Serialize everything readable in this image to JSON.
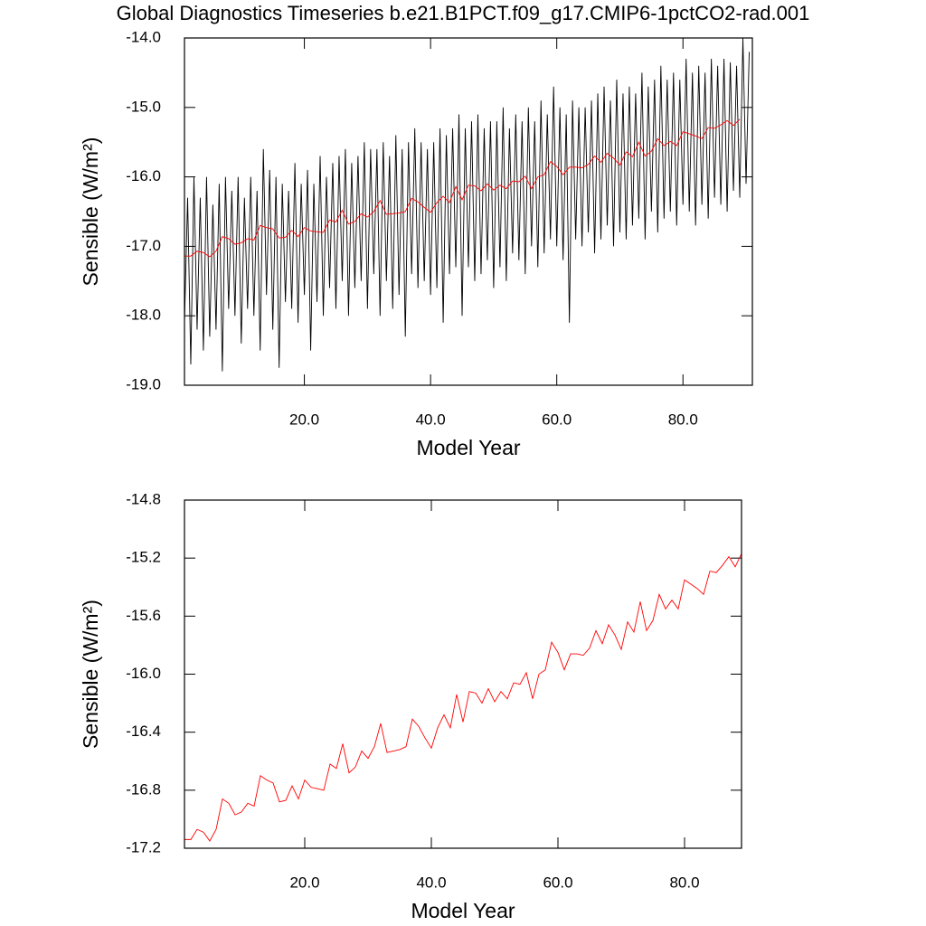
{
  "chart_data": [
    {
      "type": "line",
      "title": "Global Diagnostics Timeseries b.e21.B1PCT.f09_g17.CMIP6-1pctCO2-rad.001",
      "xlabel": "Model Year",
      "ylabel": "Sensible (W/m²)",
      "xlim": [
        1,
        91
      ],
      "ylim": [
        -19,
        -14
      ],
      "xticks": [
        {
          "value": 20,
          "label": "20.0"
        },
        {
          "value": 40,
          "label": "40.0"
        },
        {
          "value": 60,
          "label": "60.0"
        },
        {
          "value": 80,
          "label": "80.0"
        }
      ],
      "yticks": [
        {
          "value": -19,
          "label": "-19.0"
        },
        {
          "value": -18,
          "label": "-18.0"
        },
        {
          "value": -17,
          "label": "-17.0"
        },
        {
          "value": -16,
          "label": "-16.0"
        },
        {
          "value": -15,
          "label": "-15.0"
        },
        {
          "value": -14,
          "label": "-14.0"
        }
      ],
      "series": [
        {
          "color": "#000000",
          "x": [
            1,
            1.5,
            2,
            2.5,
            3,
            3.5,
            4,
            4.5,
            5,
            5.5,
            6,
            6.5,
            7,
            7.5,
            8,
            8.5,
            9,
            9.5,
            10,
            10.5,
            11,
            11.5,
            12,
            12.5,
            13,
            13.5,
            14,
            14.5,
            15,
            15.5,
            16,
            16.5,
            17,
            17.5,
            18,
            18.5,
            19,
            19.5,
            20,
            20.5,
            21,
            21.5,
            22,
            22.5,
            23,
            23.5,
            24,
            24.5,
            25,
            25.5,
            26,
            26.5,
            27,
            27.5,
            28,
            28.5,
            29,
            29.5,
            30,
            30.5,
            31,
            31.5,
            32,
            32.5,
            33,
            33.5,
            34,
            34.5,
            35,
            35.5,
            36,
            36.5,
            37,
            37.5,
            38,
            38.5,
            39,
            39.5,
            40,
            40.5,
            41,
            41.5,
            42,
            42.5,
            43,
            43.5,
            44,
            44.5,
            45,
            45.5,
            46,
            46.5,
            47,
            47.5,
            48,
            48.5,
            49,
            49.5,
            50,
            50.5,
            51,
            51.5,
            52,
            52.5,
            53,
            53.5,
            54,
            54.5,
            55,
            55.5,
            56,
            56.5,
            57,
            57.5,
            58,
            58.5,
            59,
            59.5,
            60,
            60.5,
            61,
            61.5,
            62,
            62.5,
            63,
            63.5,
            64,
            64.5,
            65,
            65.5,
            66,
            66.5,
            67,
            67.5,
            68,
            68.5,
            69,
            69.5,
            70,
            70.5,
            71,
            71.5,
            72,
            72.5,
            73,
            73.5,
            74,
            74.5,
            75,
            75.5,
            76,
            76.5,
            77,
            77.5,
            78,
            78.5,
            79,
            79.5,
            80,
            80.5,
            81,
            81.5,
            82,
            82.5,
            83,
            83.5,
            84,
            84.5,
            85,
            85.5,
            86,
            86.5,
            87,
            87.5,
            88,
            88.5,
            89,
            89.5,
            90,
            90.5
          ],
          "values": [
            -18.1,
            -16.3,
            -18.7,
            -16.0,
            -18.2,
            -16.3,
            -18.5,
            -16.0,
            -18.3,
            -16.4,
            -18.2,
            -16.1,
            -18.8,
            -16.0,
            -17.9,
            -16.2,
            -18.0,
            -16.0,
            -18.4,
            -16.3,
            -17.9,
            -16.0,
            -18.0,
            -16.2,
            -18.5,
            -15.6,
            -17.7,
            -15.9,
            -18.2,
            -16.0,
            -18.75,
            -16.1,
            -17.8,
            -16.2,
            -17.9,
            -15.8,
            -18.1,
            -16.1,
            -17.7,
            -15.9,
            -18.5,
            -16.1,
            -17.8,
            -15.7,
            -18.0,
            -16.0,
            -17.6,
            -15.8,
            -17.9,
            -15.7,
            -17.5,
            -15.6,
            -18.0,
            -15.8,
            -17.6,
            -15.7,
            -17.5,
            -15.5,
            -17.9,
            -15.6,
            -17.4,
            -15.6,
            -18.0,
            -15.5,
            -17.5,
            -15.7,
            -17.9,
            -15.4,
            -17.7,
            -15.6,
            -18.3,
            -15.5,
            -17.4,
            -15.3,
            -17.6,
            -15.5,
            -17.5,
            -15.6,
            -17.7,
            -15.5,
            -17.6,
            -15.3,
            -18.1,
            -15.4,
            -17.4,
            -15.3,
            -17.3,
            -15.1,
            -18.0,
            -15.3,
            -17.3,
            -15.2,
            -17.5,
            -15.1,
            -17.4,
            -15.3,
            -17.2,
            -15.2,
            -17.6,
            -15.2,
            -17.3,
            -15.0,
            -17.5,
            -15.3,
            -17.1,
            -15.1,
            -17.2,
            -15.2,
            -17.4,
            -15.0,
            -17.0,
            -15.2,
            -17.3,
            -14.9,
            -17.1,
            -15.1,
            -16.9,
            -14.7,
            -17.0,
            -15.0,
            -17.2,
            -15.1,
            -18.1,
            -14.9,
            -16.9,
            -15.0,
            -17.0,
            -15.0,
            -16.8,
            -14.9,
            -17.1,
            -14.8,
            -16.9,
            -14.7,
            -16.7,
            -14.9,
            -17.0,
            -14.6,
            -16.8,
            -14.8,
            -16.9,
            -14.7,
            -16.7,
            -14.8,
            -16.6,
            -14.5,
            -16.9,
            -14.7,
            -16.5,
            -14.6,
            -16.8,
            -14.4,
            -16.6,
            -14.6,
            -16.5,
            -14.5,
            -16.7,
            -14.6,
            -16.4,
            -14.3,
            -16.5,
            -14.5,
            -16.7,
            -14.4,
            -16.4,
            -14.5,
            -16.6,
            -14.3,
            -16.3,
            -14.4,
            -16.4,
            -14.3,
            -16.5,
            -14.35,
            -16.2,
            -14.4,
            -16.3,
            -14.0,
            -16.1,
            -14.2
          ]
        },
        {
          "color": "#ff0000",
          "x": [
            1,
            2,
            3,
            4,
            5,
            6,
            7,
            8,
            9,
            10,
            11,
            12,
            13,
            14,
            15,
            16,
            17,
            18,
            19,
            20,
            21,
            22,
            23,
            24,
            25,
            26,
            27,
            28,
            29,
            30,
            31,
            32,
            33,
            34,
            35,
            36,
            37,
            38,
            39,
            40,
            41,
            42,
            43,
            44,
            45,
            46,
            47,
            48,
            49,
            50,
            51,
            52,
            53,
            54,
            55,
            56,
            57,
            58,
            59,
            60,
            61,
            62,
            63,
            64,
            65,
            66,
            67,
            68,
            69,
            70,
            71,
            72,
            73,
            74,
            75,
            76,
            77,
            78,
            79,
            80,
            81,
            82,
            83,
            84,
            85,
            86,
            87,
            88,
            89
          ],
          "values": [
            -17.14,
            -17.14,
            -17.07,
            -17.09,
            -17.15,
            -17.07,
            -16.86,
            -16.89,
            -16.97,
            -16.95,
            -16.89,
            -16.91,
            -16.7,
            -16.73,
            -16.75,
            -16.88,
            -16.87,
            -16.77,
            -16.86,
            -16.73,
            -16.78,
            -16.79,
            -16.8,
            -16.62,
            -16.65,
            -16.48,
            -16.68,
            -16.64,
            -16.53,
            -16.58,
            -16.5,
            -16.34,
            -16.54,
            -16.53,
            -16.52,
            -16.5,
            -16.31,
            -16.36,
            -16.44,
            -16.51,
            -16.37,
            -16.28,
            -16.37,
            -16.14,
            -16.33,
            -16.12,
            -16.13,
            -16.2,
            -16.1,
            -16.19,
            -16.12,
            -16.17,
            -16.06,
            -16.07,
            -15.99,
            -16.17,
            -16.0,
            -15.97,
            -15.78,
            -15.85,
            -15.97,
            -15.86,
            -15.86,
            -15.87,
            -15.82,
            -15.7,
            -15.79,
            -15.66,
            -15.73,
            -15.83,
            -15.64,
            -15.71,
            -15.5,
            -15.7,
            -15.63,
            -15.45,
            -15.55,
            -15.49,
            -15.55,
            -15.35,
            -15.38,
            -15.41,
            -15.45,
            -15.29,
            -15.3,
            -15.25,
            -15.19,
            -15.26,
            -15.17
          ]
        }
      ]
    },
    {
      "type": "line",
      "xlabel": "Model Year",
      "ylabel": "Sensible (W/m²)",
      "xlim": [
        1,
        89
      ],
      "ylim": [
        -17.2,
        -14.8
      ],
      "xticks": [
        {
          "value": 20,
          "label": "20.0"
        },
        {
          "value": 40,
          "label": "40.0"
        },
        {
          "value": 60,
          "label": "60.0"
        },
        {
          "value": 80,
          "label": "80.0"
        }
      ],
      "yticks": [
        -17.2,
        -16.8,
        -16.4,
        {
          "value": -16,
          "label": "-16.0"
        },
        -15.6,
        -15.2,
        -14.8
      ],
      "series": [
        {
          "color": "#ff0000",
          "x": [
            1,
            2,
            3,
            4,
            5,
            6,
            7,
            8,
            9,
            10,
            11,
            12,
            13,
            14,
            15,
            16,
            17,
            18,
            19,
            20,
            21,
            22,
            23,
            24,
            25,
            26,
            27,
            28,
            29,
            30,
            31,
            32,
            33,
            34,
            35,
            36,
            37,
            38,
            39,
            40,
            41,
            42,
            43,
            44,
            45,
            46,
            47,
            48,
            49,
            50,
            51,
            52,
            53,
            54,
            55,
            56,
            57,
            58,
            59,
            60,
            61,
            62,
            63,
            64,
            65,
            66,
            67,
            68,
            69,
            70,
            71,
            72,
            73,
            74,
            75,
            76,
            77,
            78,
            79,
            80,
            81,
            82,
            83,
            84,
            85,
            86,
            87,
            88,
            89
          ],
          "values": [
            -17.14,
            -17.14,
            -17.07,
            -17.09,
            -17.15,
            -17.07,
            -16.86,
            -16.89,
            -16.97,
            -16.95,
            -16.89,
            -16.91,
            -16.7,
            -16.73,
            -16.75,
            -16.88,
            -16.87,
            -16.77,
            -16.86,
            -16.73,
            -16.78,
            -16.79,
            -16.8,
            -16.62,
            -16.65,
            -16.48,
            -16.68,
            -16.64,
            -16.53,
            -16.58,
            -16.5,
            -16.34,
            -16.54,
            -16.53,
            -16.52,
            -16.5,
            -16.31,
            -16.36,
            -16.44,
            -16.51,
            -16.37,
            -16.28,
            -16.37,
            -16.14,
            -16.33,
            -16.12,
            -16.13,
            -16.2,
            -16.1,
            -16.19,
            -16.12,
            -16.17,
            -16.06,
            -16.07,
            -15.99,
            -16.17,
            -16.0,
            -15.97,
            -15.78,
            -15.85,
            -15.97,
            -15.86,
            -15.86,
            -15.87,
            -15.82,
            -15.7,
            -15.79,
            -15.66,
            -15.73,
            -15.83,
            -15.64,
            -15.71,
            -15.5,
            -15.7,
            -15.63,
            -15.45,
            -15.55,
            -15.49,
            -15.55,
            -15.35,
            -15.38,
            -15.41,
            -15.45,
            -15.29,
            -15.3,
            -15.25,
            -15.19,
            -15.26,
            -15.17
          ]
        }
      ]
    }
  ]
}
